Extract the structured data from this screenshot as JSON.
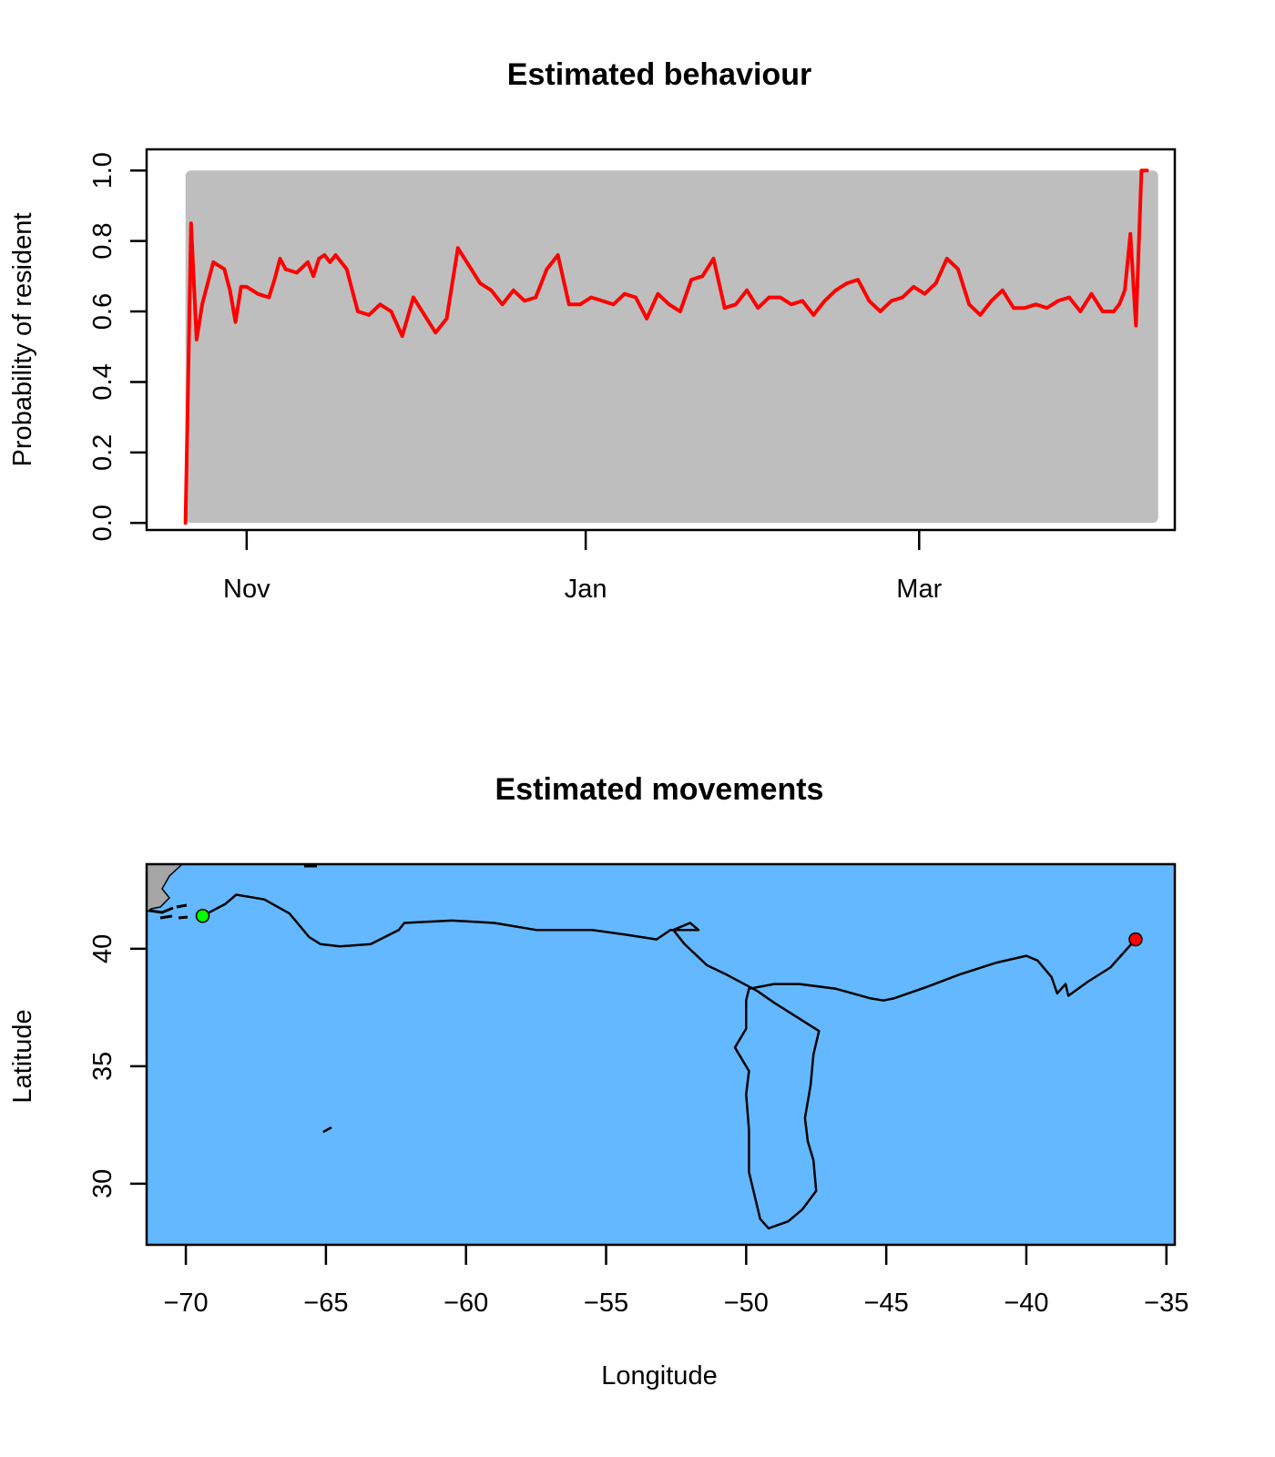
{
  "chart_data": [
    {
      "type": "line",
      "title": "Estimated behaviour",
      "xlabel": "",
      "ylabel": "Probability of resident",
      "xlim": [
        "2007-10-14",
        "2008-04-16"
      ],
      "ylim": [
        -0.02,
        1.06
      ],
      "y_ticks": [
        "0.0",
        "0.2",
        "0.4",
        "0.6",
        "0.8",
        "1.0"
      ],
      "x_ticks": [
        {
          "date": "2007-11-01",
          "label": "Nov"
        },
        {
          "date": "2008-01-01",
          "label": "Jan"
        },
        {
          "date": "2008-03-01",
          "label": "Mar"
        }
      ],
      "band": {
        "x_start": "2007-10-21",
        "x_end": "2008-04-13",
        "ymin": 0.0,
        "ymax": 1.0,
        "color": "#bebebe"
      },
      "series": [
        {
          "color": "#ff0000",
          "x": [
            "2007-10-21",
            "2007-10-22",
            "2007-10-23",
            "2007-10-24",
            "2007-10-26",
            "2007-10-28",
            "2007-10-29",
            "2007-10-30",
            "2007-10-31",
            "2007-11-01",
            "2007-11-03",
            "2007-11-05",
            "2007-11-06",
            "2007-11-07",
            "2007-11-08",
            "2007-11-10",
            "2007-11-12",
            "2007-11-13",
            "2007-11-14",
            "2007-11-15",
            "2007-11-16",
            "2007-11-17",
            "2007-11-19",
            "2007-11-21",
            "2007-11-23",
            "2007-11-25",
            "2007-11-27",
            "2007-11-29",
            "2007-12-01",
            "2007-12-03",
            "2007-12-05",
            "2007-12-07",
            "2007-12-09",
            "2007-12-11",
            "2007-12-13",
            "2007-12-15",
            "2007-12-17",
            "2007-12-19",
            "2007-12-21",
            "2007-12-23",
            "2007-12-25",
            "2007-12-27",
            "2007-12-29",
            "2007-12-31",
            "2008-01-02",
            "2008-01-04",
            "2008-01-06",
            "2008-01-08",
            "2008-01-10",
            "2008-01-12",
            "2008-01-14",
            "2008-01-16",
            "2008-01-18",
            "2008-01-20",
            "2008-01-22",
            "2008-01-24",
            "2008-01-26",
            "2008-01-28",
            "2008-01-30",
            "2008-02-01",
            "2008-02-03",
            "2008-02-05",
            "2008-02-07",
            "2008-02-09",
            "2008-02-11",
            "2008-02-13",
            "2008-02-15",
            "2008-02-17",
            "2008-02-19",
            "2008-02-21",
            "2008-02-23",
            "2008-02-25",
            "2008-02-27",
            "2008-02-29",
            "2008-03-02",
            "2008-03-04",
            "2008-03-06",
            "2008-03-08",
            "2008-03-10",
            "2008-03-12",
            "2008-03-14",
            "2008-03-16",
            "2008-03-18",
            "2008-03-20",
            "2008-03-22",
            "2008-03-24",
            "2008-03-26",
            "2008-03-28",
            "2008-03-30",
            "2008-04-01",
            "2008-04-03",
            "2008-04-05",
            "2008-04-06",
            "2008-04-07",
            "2008-04-08",
            "2008-04-09",
            "2008-04-10",
            "2008-04-11"
          ],
          "y": [
            0.0,
            0.85,
            0.52,
            0.62,
            0.74,
            0.72,
            0.66,
            0.57,
            0.67,
            0.67,
            0.65,
            0.64,
            0.69,
            0.75,
            0.72,
            0.71,
            0.74,
            0.7,
            0.75,
            0.76,
            0.74,
            0.76,
            0.72,
            0.6,
            0.59,
            0.62,
            0.6,
            0.53,
            0.64,
            0.59,
            0.54,
            0.58,
            0.78,
            0.73,
            0.68,
            0.66,
            0.62,
            0.66,
            0.63,
            0.64,
            0.72,
            0.76,
            0.62,
            0.62,
            0.64,
            0.63,
            0.62,
            0.65,
            0.64,
            0.58,
            0.65,
            0.62,
            0.6,
            0.69,
            0.7,
            0.75,
            0.61,
            0.62,
            0.66,
            0.61,
            0.64,
            0.64,
            0.62,
            0.63,
            0.59,
            0.63,
            0.66,
            0.68,
            0.69,
            0.63,
            0.6,
            0.63,
            0.64,
            0.67,
            0.65,
            0.68,
            0.75,
            0.72,
            0.62,
            0.59,
            0.63,
            0.66,
            0.61,
            0.61,
            0.62,
            0.61,
            0.63,
            0.64,
            0.6,
            0.65,
            0.6,
            0.6,
            0.62,
            0.66,
            0.82,
            0.56,
            1.0,
            1.0
          ]
        }
      ]
    },
    {
      "type": "line",
      "title": "Estimated movements",
      "xlabel": "Longitude",
      "ylabel": "Latitude",
      "xlim": [
        -71.4,
        -34.7
      ],
      "ylim": [
        27.4,
        43.6
      ],
      "x_ticks": [
        "−70",
        "−65",
        "−60",
        "−55",
        "−50",
        "−45",
        "−40",
        "−35"
      ],
      "y_ticks": [
        "30",
        "35",
        "40"
      ],
      "background": "#63b8ff",
      "land_color": "#a6a6a6",
      "track_color": "#000000",
      "start_point": {
        "lon": -69.4,
        "lat": 41.4,
        "color": "#00ff00"
      },
      "end_point": {
        "lon": -36.1,
        "lat": 40.4,
        "color": "#ff0000"
      },
      "series": [
        {
          "lon": [
            -69.4,
            -68.6,
            -68.2,
            -67.2,
            -66.3,
            -65.6,
            -65.2,
            -64.5,
            -63.4,
            -62.4,
            -62.2,
            -60.5,
            -59.0,
            -57.5,
            -56.5,
            -55.5,
            -54.3,
            -53.2,
            -52.7,
            -51.7,
            -52.0,
            -52.6,
            -52.2,
            -51.4,
            -50.7,
            -49.6,
            -49.0,
            -48.2,
            -47.4,
            -47.6,
            -47.7,
            -47.9,
            -47.8,
            -47.6,
            -47.5,
            -48.0,
            -48.5,
            -49.2,
            -49.5,
            -49.9,
            -49.9,
            -50.0,
            -49.9,
            -50.4,
            -50.0,
            -50.0,
            -49.9,
            -49.0,
            -48.1,
            -46.8,
            -45.6,
            -45.1,
            -44.7,
            -43.5,
            -42.4,
            -41.1,
            -40.0,
            -39.6,
            -39.1,
            -38.9,
            -38.6,
            -38.5,
            -37.8,
            -37.0,
            -36.1
          ],
          "lat": [
            41.4,
            41.9,
            42.3,
            42.1,
            41.5,
            40.5,
            40.2,
            40.1,
            40.2,
            40.8,
            41.1,
            41.2,
            41.1,
            40.8,
            40.8,
            40.8,
            40.6,
            40.4,
            40.8,
            40.8,
            41.1,
            40.8,
            40.2,
            39.3,
            38.9,
            38.2,
            37.7,
            37.1,
            36.5,
            35.5,
            34.2,
            32.8,
            31.8,
            31.0,
            29.7,
            28.9,
            28.4,
            28.1,
            28.5,
            30.5,
            32.3,
            33.8,
            34.8,
            35.8,
            36.6,
            37.8,
            38.3,
            38.5,
            38.5,
            38.3,
            37.9,
            37.8,
            37.9,
            38.4,
            38.9,
            39.4,
            39.7,
            39.5,
            38.8,
            38.1,
            38.5,
            38.0,
            38.6,
            39.2,
            40.4
          ]
        },
        {
          "lon": [
            -65.1,
            -64.8
          ],
          "lat": [
            32.2,
            32.4
          ]
        }
      ]
    }
  ]
}
